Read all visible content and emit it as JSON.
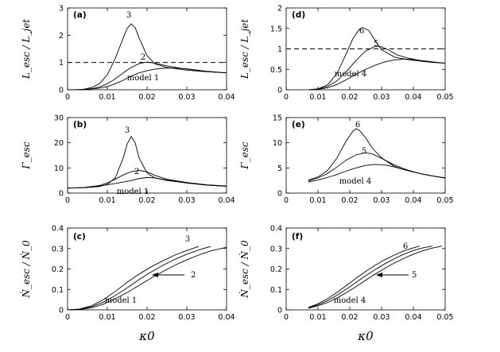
{
  "chart_data": [
    {
      "type": "line",
      "panel": "(a)",
      "ylabel": "L_esc / L_jet",
      "xlim": [
        0,
        0.04
      ],
      "ylim": [
        0,
        3
      ],
      "xticks": [
        "0",
        "0.01",
        "0.02",
        "0.03",
        "0.04"
      ],
      "yticks": [
        "0",
        "1",
        "2",
        "3"
      ],
      "reference_line": {
        "y": 1,
        "style": "dashed"
      },
      "series": [
        {
          "name": "3",
          "x": [
            0.0,
            0.002,
            0.004,
            0.006,
            0.008,
            0.01,
            0.012,
            0.014,
            0.015,
            0.016,
            0.017,
            0.018,
            0.02,
            0.022,
            0.025,
            0.028,
            0.03,
            0.035,
            0.04
          ],
          "y": [
            0.0,
            0.0,
            0.02,
            0.08,
            0.22,
            0.55,
            1.15,
            1.9,
            2.25,
            2.42,
            2.28,
            1.9,
            1.25,
            0.95,
            0.82,
            0.76,
            0.72,
            0.66,
            0.62
          ]
        },
        {
          "name": "2",
          "x": [
            0.0,
            0.004,
            0.006,
            0.008,
            0.01,
            0.012,
            0.014,
            0.016,
            0.018,
            0.02,
            0.022,
            0.025,
            0.028,
            0.03,
            0.035,
            0.04
          ],
          "y": [
            0.0,
            0.01,
            0.04,
            0.1,
            0.22,
            0.4,
            0.62,
            0.82,
            0.96,
            1.02,
            0.97,
            0.88,
            0.8,
            0.76,
            0.67,
            0.62
          ]
        },
        {
          "name": "model 1",
          "x": [
            0.0,
            0.004,
            0.008,
            0.01,
            0.012,
            0.014,
            0.016,
            0.018,
            0.02,
            0.022,
            0.024,
            0.026,
            0.028,
            0.03,
            0.035,
            0.04
          ],
          "y": [
            0.0,
            0.0,
            0.06,
            0.12,
            0.22,
            0.35,
            0.5,
            0.62,
            0.7,
            0.76,
            0.79,
            0.8,
            0.79,
            0.77,
            0.68,
            0.62
          ]
        }
      ],
      "labels": {
        "curve_top": "3",
        "curve_mid": "2",
        "curve_low": "model 1"
      }
    },
    {
      "type": "line",
      "panel": "(b)",
      "ylabel": "Γ_esc",
      "xlim": [
        0,
        0.04
      ],
      "ylim": [
        0,
        30
      ],
      "xticks": [
        "0",
        "0.01",
        "0.02",
        "0.03",
        "0.04"
      ],
      "yticks": [
        "0",
        "10",
        "20",
        "30"
      ],
      "series": [
        {
          "name": "3",
          "x": [
            0.0,
            0.004,
            0.008,
            0.01,
            0.012,
            0.014,
            0.015,
            0.016,
            0.017,
            0.018,
            0.02,
            0.022,
            0.025,
            0.03,
            0.035,
            0.04
          ],
          "y": [
            2.0,
            2.1,
            2.6,
            3.5,
            6.0,
            14.0,
            19.5,
            22.5,
            20.0,
            14.0,
            8.0,
            6.0,
            5.0,
            4.0,
            3.2,
            2.7
          ]
        },
        {
          "name": "2",
          "x": [
            0.0,
            0.004,
            0.008,
            0.01,
            0.012,
            0.014,
            0.016,
            0.018,
            0.02,
            0.022,
            0.025,
            0.03,
            0.035,
            0.04
          ],
          "y": [
            2.0,
            2.2,
            3.0,
            4.0,
            5.5,
            7.2,
            8.5,
            9.0,
            8.5,
            7.0,
            5.5,
            4.2,
            3.3,
            2.8
          ]
        },
        {
          "name": "model 1",
          "x": [
            0.0,
            0.004,
            0.008,
            0.012,
            0.016,
            0.018,
            0.02,
            0.022,
            0.025,
            0.03,
            0.035,
            0.04
          ],
          "y": [
            2.0,
            2.2,
            2.8,
            3.8,
            5.0,
            5.8,
            6.2,
            6.0,
            5.2,
            4.0,
            3.2,
            2.7
          ]
        }
      ],
      "labels": {
        "curve_top": "3",
        "curve_mid": "2",
        "curve_low": "model 1"
      }
    },
    {
      "type": "line",
      "panel": "(c)",
      "ylabel": "Ṅ_esc / Ṅ_0",
      "xlabel": "κ0",
      "xlim": [
        0,
        0.04
      ],
      "ylim": [
        0,
        0.4
      ],
      "xticks": [
        "0",
        "0.01",
        "0.02",
        "0.03",
        "0.04"
      ],
      "yticks": [
        "0",
        "0.1",
        "0.2",
        "0.3",
        "0.4"
      ],
      "series": [
        {
          "name": "3",
          "x": [
            0.0,
            0.003,
            0.006,
            0.009,
            0.012,
            0.015,
            0.018,
            0.021,
            0.024,
            0.027,
            0.03,
            0.033
          ],
          "y": [
            0.0,
            0.004,
            0.02,
            0.05,
            0.09,
            0.135,
            0.175,
            0.21,
            0.24,
            0.268,
            0.29,
            0.31
          ]
        },
        {
          "name": "2",
          "x": [
            0.0,
            0.003,
            0.006,
            0.009,
            0.012,
            0.015,
            0.018,
            0.021,
            0.024,
            0.027,
            0.03,
            0.033,
            0.036
          ],
          "y": [
            0.0,
            0.003,
            0.015,
            0.038,
            0.07,
            0.108,
            0.148,
            0.185,
            0.218,
            0.247,
            0.272,
            0.293,
            0.31
          ]
        },
        {
          "name": "model 1",
          "x": [
            0.0,
            0.003,
            0.006,
            0.009,
            0.012,
            0.015,
            0.018,
            0.021,
            0.024,
            0.027,
            0.03,
            0.033,
            0.036,
            0.04
          ],
          "y": [
            0.0,
            0.002,
            0.01,
            0.028,
            0.055,
            0.085,
            0.12,
            0.155,
            0.188,
            0.218,
            0.245,
            0.268,
            0.288,
            0.306
          ]
        }
      ],
      "labels": {
        "curve_top": "3",
        "curve_mid": "2",
        "curve_low": "model 1"
      }
    },
    {
      "type": "line",
      "panel": "(d)",
      "ylabel": "L_esc / L_jet",
      "xlim": [
        0,
        0.05
      ],
      "ylim": [
        0,
        2
      ],
      "xticks": [
        "0",
        "0.01",
        "0.02",
        "0.03",
        "0.04",
        "0.05"
      ],
      "yticks": [
        "0",
        "0.5",
        "1",
        "1.5",
        "2"
      ],
      "reference_line": {
        "y": 1,
        "style": "dashed"
      },
      "series": [
        {
          "name": "6",
          "x": [
            0.007,
            0.01,
            0.013,
            0.016,
            0.019,
            0.021,
            0.023,
            0.024,
            0.026,
            0.028,
            0.03,
            0.034,
            0.038,
            0.042,
            0.046,
            0.05
          ],
          "y": [
            0.0,
            0.02,
            0.12,
            0.4,
            0.9,
            1.25,
            1.48,
            1.52,
            1.45,
            1.2,
            0.98,
            0.8,
            0.74,
            0.7,
            0.67,
            0.65
          ]
        },
        {
          "name": "5",
          "x": [
            0.007,
            0.01,
            0.013,
            0.016,
            0.019,
            0.022,
            0.025,
            0.028,
            0.03,
            0.032,
            0.035,
            0.038,
            0.042,
            0.046,
            0.05
          ],
          "y": [
            0.0,
            0.02,
            0.08,
            0.22,
            0.45,
            0.72,
            0.95,
            1.06,
            1.05,
            0.98,
            0.85,
            0.78,
            0.72,
            0.68,
            0.65
          ]
        },
        {
          "name": "model 4",
          "x": [
            0.007,
            0.01,
            0.013,
            0.016,
            0.019,
            0.022,
            0.025,
            0.028,
            0.031,
            0.034,
            0.037,
            0.04,
            0.043,
            0.046,
            0.05
          ],
          "y": [
            0.0,
            0.01,
            0.05,
            0.13,
            0.25,
            0.38,
            0.5,
            0.6,
            0.68,
            0.73,
            0.75,
            0.74,
            0.71,
            0.68,
            0.65
          ]
        }
      ],
      "labels": {
        "curve_top": "6",
        "curve_mid": "5",
        "curve_low": "model 4"
      }
    },
    {
      "type": "line",
      "panel": "(e)",
      "ylabel": "Γ_esc",
      "xlim": [
        0,
        0.05
      ],
      "ylim": [
        0,
        15
      ],
      "xticks": [
        "0",
        "0.01",
        "0.02",
        "0.03",
        "0.04",
        "0.05"
      ],
      "yticks": [
        "0",
        "5",
        "10",
        "15"
      ],
      "series": [
        {
          "name": "6",
          "x": [
            0.007,
            0.01,
            0.013,
            0.016,
            0.019,
            0.021,
            0.022,
            0.023,
            0.025,
            0.027,
            0.03,
            0.034,
            0.038,
            0.042,
            0.046,
            0.05
          ],
          "y": [
            2.6,
            3.2,
            4.5,
            7.0,
            10.5,
            12.3,
            12.8,
            12.5,
            11.0,
            9.0,
            7.0,
            5.3,
            4.5,
            3.9,
            3.4,
            3.0
          ]
        },
        {
          "name": "5",
          "x": [
            0.007,
            0.01,
            0.013,
            0.016,
            0.019,
            0.022,
            0.025,
            0.027,
            0.03,
            0.034,
            0.038,
            0.042,
            0.046,
            0.05
          ],
          "y": [
            2.4,
            3.0,
            3.9,
            5.2,
            6.6,
            7.6,
            8.0,
            7.8,
            6.9,
            5.6,
            4.6,
            3.9,
            3.4,
            3.0
          ]
        },
        {
          "name": "model 4",
          "x": [
            0.007,
            0.01,
            0.013,
            0.016,
            0.019,
            0.022,
            0.025,
            0.028,
            0.031,
            0.034,
            0.038,
            0.042,
            0.046,
            0.05
          ],
          "y": [
            2.2,
            2.6,
            3.1,
            3.7,
            4.4,
            5.0,
            5.5,
            5.7,
            5.6,
            5.2,
            4.5,
            3.9,
            3.4,
            3.0
          ]
        }
      ],
      "labels": {
        "curve_top": "6",
        "curve_mid": "5",
        "curve_low": "model 4"
      }
    },
    {
      "type": "line",
      "panel": "(f)",
      "ylabel": "Ṅ_esc / Ṅ_0",
      "xlabel": "κ0",
      "xlim": [
        0,
        0.05
      ],
      "ylim": [
        0,
        0.4
      ],
      "xticks": [
        "0",
        "0.01",
        "0.02",
        "0.03",
        "0.04",
        "0.05"
      ],
      "yticks": [
        "0",
        "0.1",
        "0.2",
        "0.3",
        "0.4"
      ],
      "series": [
        {
          "name": "6",
          "x": [
            0.007,
            0.01,
            0.013,
            0.016,
            0.019,
            0.022,
            0.025,
            0.028,
            0.031,
            0.034,
            0.037,
            0.04,
            0.042
          ],
          "y": [
            0.012,
            0.03,
            0.055,
            0.085,
            0.12,
            0.155,
            0.188,
            0.218,
            0.245,
            0.268,
            0.288,
            0.303,
            0.312
          ]
        },
        {
          "name": "5",
          "x": [
            0.007,
            0.01,
            0.013,
            0.016,
            0.019,
            0.022,
            0.025,
            0.028,
            0.031,
            0.034,
            0.037,
            0.04,
            0.043,
            0.046
          ],
          "y": [
            0.01,
            0.025,
            0.045,
            0.072,
            0.102,
            0.135,
            0.167,
            0.197,
            0.225,
            0.25,
            0.272,
            0.29,
            0.303,
            0.312
          ]
        },
        {
          "name": "model 4",
          "x": [
            0.007,
            0.01,
            0.013,
            0.016,
            0.019,
            0.022,
            0.025,
            0.028,
            0.031,
            0.034,
            0.037,
            0.04,
            0.043,
            0.046,
            0.049
          ],
          "y": [
            0.008,
            0.02,
            0.036,
            0.058,
            0.085,
            0.114,
            0.145,
            0.175,
            0.203,
            0.229,
            0.252,
            0.272,
            0.289,
            0.302,
            0.312
          ]
        }
      ],
      "labels": {
        "curve_top": "6",
        "curve_mid": "5",
        "curve_low": "model 4"
      }
    }
  ]
}
